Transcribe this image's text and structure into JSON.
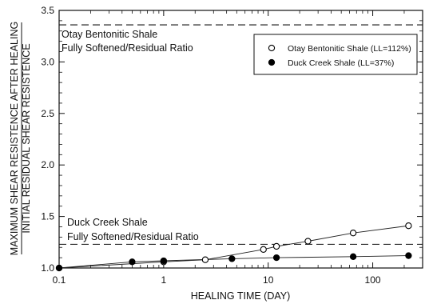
{
  "chart_data": {
    "type": "scatter",
    "title": "",
    "xlabel": "HEALING TIME (DAY)",
    "ylabel_line1": "MAXIMUM SHEAR RESISTENCE AFTER HEALING",
    "ylabel_line2": "INITIAL RESIDUAL SHEAR RESISTENCE",
    "x_scale": "log",
    "xlim": [
      0.1,
      300
    ],
    "ylim": [
      1.0,
      3.5
    ],
    "x_ticks": [
      {
        "value": 0.1,
        "label": "0.1"
      },
      {
        "value": 1,
        "label": "1"
      },
      {
        "value": 10,
        "label": "10"
      },
      {
        "value": 100,
        "label": "100"
      }
    ],
    "y_ticks": [
      {
        "value": 1.0,
        "label": "1.0"
      },
      {
        "value": 1.5,
        "label": "1.5"
      },
      {
        "value": 2.0,
        "label": "2.0"
      },
      {
        "value": 2.5,
        "label": "2.5"
      },
      {
        "value": 3.0,
        "label": "3.0"
      },
      {
        "value": 3.5,
        "label": "3.5"
      }
    ],
    "grid": false,
    "legend_position": "top-right",
    "series": [
      {
        "name": "Otay Bentonitic Shale (LL=112%)",
        "marker": "open-circle",
        "color": "#000000",
        "x": [
          0.1,
          1,
          2.5,
          9,
          12,
          24,
          65,
          220
        ],
        "y": [
          1.0,
          1.06,
          1.08,
          1.18,
          1.21,
          1.26,
          1.34,
          1.41
        ]
      },
      {
        "name": "Duck Creek Shale (LL=37%)",
        "marker": "filled-circle",
        "color": "#000000",
        "x": [
          0.1,
          0.5,
          1,
          4.5,
          12,
          65,
          220
        ],
        "y": [
          1.0,
          1.06,
          1.07,
          1.09,
          1.1,
          1.11,
          1.12
        ]
      }
    ],
    "reference_lines": [
      {
        "y": 3.36,
        "style": "dashed",
        "label_line1": "Otay Bentonitic Shale",
        "label_line2": "Fully Softened/Residual Ratio"
      },
      {
        "y": 1.23,
        "style": "dashed",
        "label_line1": "Duck Creek Shale",
        "label_line2": "Fully Softened/Residual Ratio"
      }
    ]
  }
}
